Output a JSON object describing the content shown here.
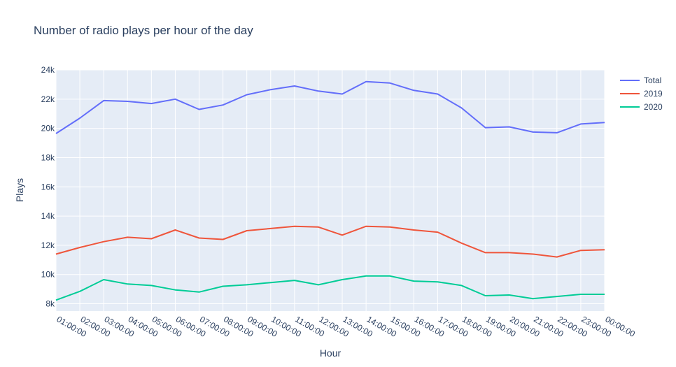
{
  "chart_data": {
    "type": "line",
    "title": "Number of radio plays per hour of the day",
    "xlabel": "Hour",
    "ylabel": "Plays",
    "ylim": [
      7500,
      24000
    ],
    "yticks": [
      8000,
      10000,
      12000,
      14000,
      16000,
      18000,
      20000,
      22000,
      24000
    ],
    "ytick_labels": [
      "8k",
      "10k",
      "12k",
      "14k",
      "16k",
      "18k",
      "20k",
      "22k",
      "24k"
    ],
    "categories": [
      "01:00:00",
      "02:00:00",
      "03:00:00",
      "04:00:00",
      "05:00:00",
      "06:00:00",
      "07:00:00",
      "08:00:00",
      "09:00:00",
      "10:00:00",
      "11:00:00",
      "12:00:00",
      "13:00:00",
      "14:00:00",
      "15:00:00",
      "16:00:00",
      "17:00:00",
      "18:00:00",
      "19:00:00",
      "20:00:00",
      "21:00:00",
      "22:00:00",
      "23:00:00",
      "00:00:00"
    ],
    "legend_position": "top-right",
    "grid": true,
    "series": [
      {
        "name": "Total",
        "color": "#636efa",
        "values": [
          19650,
          20700,
          21900,
          21850,
          21700,
          22000,
          21300,
          21600,
          22300,
          22650,
          22900,
          22550,
          22350,
          23200,
          23100,
          22600,
          22350,
          21400,
          20050,
          20100,
          19750,
          19700,
          20300,
          20400
        ]
      },
      {
        "name": "2019",
        "color": "#ef553b",
        "values": [
          11400,
          11850,
          12250,
          12550,
          12450,
          13050,
          12500,
          12400,
          13000,
          13150,
          13300,
          13250,
          12700,
          13300,
          13250,
          13050,
          12900,
          12150,
          11500,
          11500,
          11400,
          11200,
          11650,
          11700
        ]
      },
      {
        "name": "2020",
        "color": "#00cc96",
        "values": [
          8250,
          8850,
          9650,
          9350,
          9250,
          8950,
          8800,
          9200,
          9300,
          9450,
          9600,
          9300,
          9650,
          9900,
          9900,
          9550,
          9500,
          9250,
          8550,
          8600,
          8350,
          8500,
          8650,
          8650
        ]
      }
    ]
  }
}
